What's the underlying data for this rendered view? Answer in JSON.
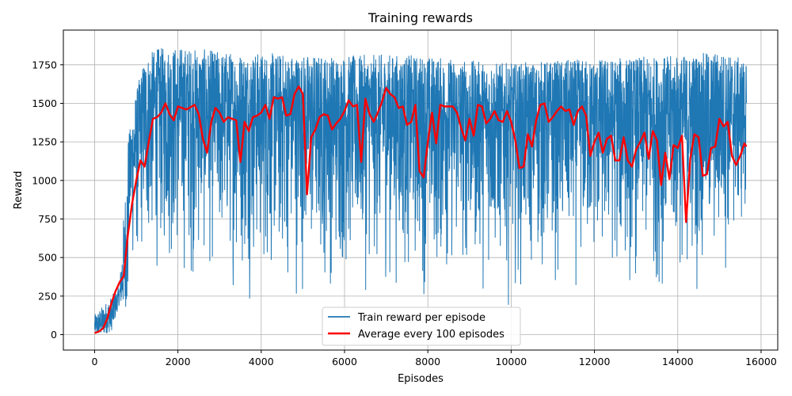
{
  "chart_data": {
    "type": "line",
    "title": "Training rewards",
    "xlabel": "Episodes",
    "ylabel": "Reward",
    "xlim": [
      -750,
      16400
    ],
    "ylim": [
      -100,
      1975
    ],
    "xticks": [
      0,
      2000,
      4000,
      6000,
      8000,
      10000,
      12000,
      14000,
      16000
    ],
    "yticks": [
      0,
      250,
      500,
      750,
      1000,
      1250,
      1500,
      1750
    ],
    "grid": true,
    "legend_position": "lower-center",
    "series": [
      {
        "name": "Train reward per episode",
        "color": "#1f77b4",
        "kind": "raw_band",
        "x_range": [
          0,
          15650
        ],
        "envelope": {
          "x": [
            0,
            200,
            400,
            600,
            800,
            1000,
            1200,
            1500,
            2000,
            3000,
            4000,
            5000,
            6000,
            7000,
            8000,
            9000,
            10000,
            11000,
            12000,
            13000,
            14000,
            15000,
            15650
          ],
          "max": [
            130,
            190,
            250,
            320,
            1260,
            1580,
            1800,
            1860,
            1870,
            1840,
            1830,
            1820,
            1810,
            1820,
            1810,
            1780,
            1760,
            1780,
            1790,
            1800,
            1810,
            1840,
            1780
          ],
          "min": [
            0,
            0,
            20,
            200,
            170,
            170,
            180,
            200,
            120,
            150,
            80,
            70,
            100,
            120,
            80,
            120,
            110,
            110,
            100,
            100,
            100,
            110,
            400
          ]
        }
      },
      {
        "name": "Average every 100 episodes",
        "color": "#ff0000",
        "kind": "line",
        "x": [
          0,
          100,
          200,
          300,
          400,
          500,
          600,
          700,
          800,
          900,
          1000,
          1100,
          1200,
          1300,
          1400,
          1500,
          1600,
          1700,
          1800,
          1900,
          2000,
          2200,
          2400,
          2500,
          2600,
          2700,
          2800,
          2900,
          3000,
          3100,
          3200,
          3300,
          3400,
          3500,
          3600,
          3700,
          3800,
          3900,
          4000,
          4100,
          4200,
          4300,
          4400,
          4500,
          4600,
          4700,
          4800,
          4900,
          5000,
          5100,
          5200,
          5300,
          5400,
          5500,
          5600,
          5700,
          5800,
          5900,
          6000,
          6100,
          6200,
          6300,
          6400,
          6500,
          6600,
          6700,
          6800,
          6900,
          7000,
          7100,
          7200,
          7300,
          7400,
          7500,
          7600,
          7700,
          7800,
          7900,
          8000,
          8100,
          8200,
          8300,
          8400,
          8500,
          8600,
          8700,
          8800,
          8900,
          9000,
          9100,
          9200,
          9300,
          9400,
          9500,
          9600,
          9700,
          9800,
          9900,
          10000,
          10100,
          10200,
          10300,
          10400,
          10500,
          10600,
          10700,
          10800,
          10900,
          11000,
          11100,
          11200,
          11300,
          11400,
          11500,
          11600,
          11700,
          11800,
          11900,
          12000,
          12100,
          12200,
          12300,
          12400,
          12500,
          12600,
          12700,
          12800,
          12900,
          13000,
          13100,
          13200,
          13300,
          13400,
          13500,
          13600,
          13700,
          13800,
          13900,
          14000,
          14100,
          14200,
          14300,
          14400,
          14500,
          14600,
          14700,
          14800,
          14900,
          15000,
          15100,
          15200,
          15300,
          15400,
          15500,
          15600,
          15650
        ],
        "y": [
          10,
          20,
          40,
          100,
          200,
          280,
          340,
          380,
          650,
          850,
          1000,
          1130,
          1090,
          1250,
          1400,
          1410,
          1440,
          1500,
          1430,
          1390,
          1480,
          1460,
          1490,
          1430,
          1270,
          1180,
          1380,
          1470,
          1440,
          1380,
          1410,
          1400,
          1390,
          1120,
          1380,
          1320,
          1410,
          1420,
          1440,
          1490,
          1400,
          1540,
          1530,
          1540,
          1420,
          1430,
          1560,
          1610,
          1560,
          910,
          1280,
          1330,
          1410,
          1430,
          1420,
          1330,
          1370,
          1400,
          1450,
          1520,
          1480,
          1490,
          1120,
          1530,
          1430,
          1380,
          1440,
          1510,
          1600,
          1560,
          1540,
          1470,
          1480,
          1360,
          1380,
          1490,
          1060,
          1020,
          1250,
          1440,
          1240,
          1490,
          1480,
          1480,
          1480,
          1440,
          1340,
          1260,
          1400,
          1290,
          1490,
          1480,
          1370,
          1400,
          1450,
          1390,
          1380,
          1450,
          1380,
          1260,
          1080,
          1090,
          1300,
          1220,
          1390,
          1490,
          1500,
          1380,
          1410,
          1450,
          1480,
          1450,
          1460,
          1360,
          1450,
          1480,
          1420,
          1160,
          1250,
          1310,
          1180,
          1270,
          1290,
          1130,
          1130,
          1280,
          1130,
          1090,
          1200,
          1250,
          1310,
          1140,
          1320,
          1260,
          970,
          1180,
          1010,
          1230,
          1210,
          1290,
          730,
          1140,
          1300,
          1280,
          1030,
          1040,
          1210,
          1220,
          1400,
          1350,
          1380,
          1160,
          1100,
          1160,
          1240,
          1220
        ]
      }
    ]
  }
}
